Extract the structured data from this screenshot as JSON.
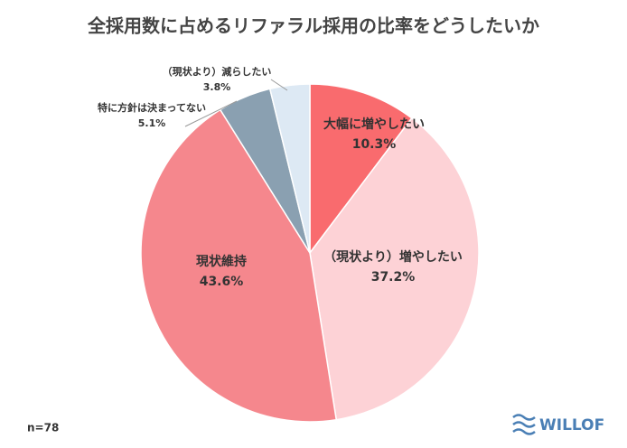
{
  "chart_data": {
    "type": "pie",
    "title": "全採用数に占めるリファラル採用の比率をどうしたいか",
    "categories": [
      "大幅に増やしたい",
      "（現状より）増やしたい",
      "現状維持",
      "特に方針は決まってない",
      "（現状より）減らしたい"
    ],
    "values": [
      10.3,
      37.2,
      43.6,
      5.1,
      3.8
    ],
    "value_labels": [
      "10.3%",
      "37.2%",
      "43.6%",
      "5.1%",
      "3.8%"
    ],
    "colors": [
      "#f96b6e",
      "#fdd2d6",
      "#f5878d",
      "#8aa0b1",
      "#dde9f4"
    ],
    "note": "n=78",
    "brand": "WILLOF"
  }
}
